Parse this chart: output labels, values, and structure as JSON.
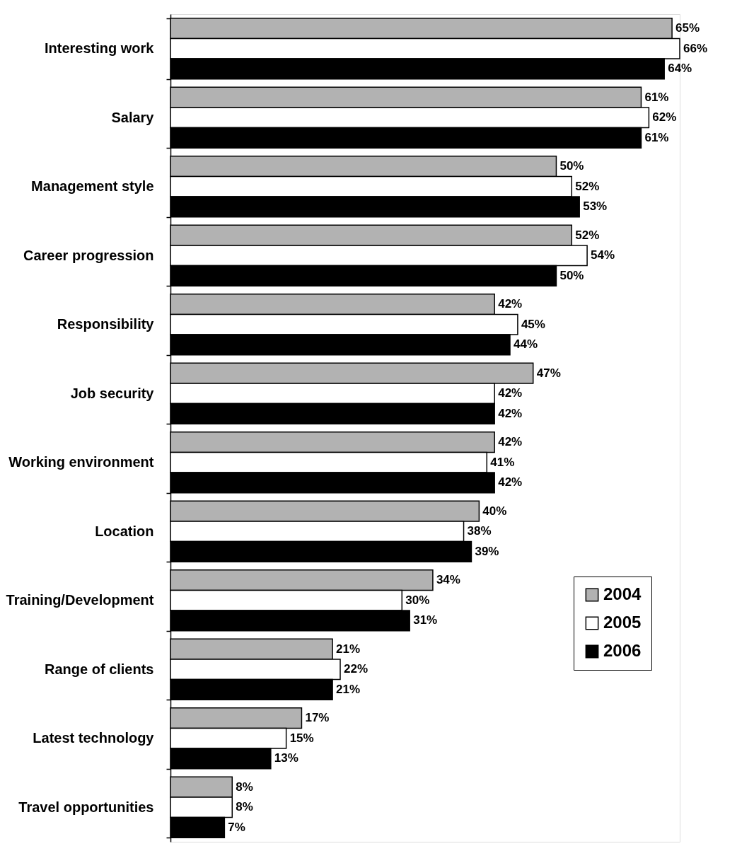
{
  "chart_data": {
    "type": "bar",
    "orientation": "horizontal",
    "categories": [
      "Interesting work",
      "Salary",
      "Management style",
      "Career progression",
      "Responsibility",
      "Job security",
      "Working environment",
      "Location",
      "Training/Development",
      "Range of clients",
      "Latest technology",
      "Travel opportunities"
    ],
    "series": [
      {
        "name": "2004",
        "color": "#b2b2b2",
        "values": [
          65,
          61,
          50,
          52,
          42,
          47,
          42,
          40,
          34,
          21,
          17,
          8
        ],
        "value_labels": [
          "65%",
          "61%",
          "50%",
          "52%",
          "42%",
          "47%",
          "42%",
          "40%",
          "34%",
          "21%",
          "17%",
          "8%"
        ]
      },
      {
        "name": "2005",
        "color": "#ffffff",
        "values": [
          66,
          62,
          52,
          54,
          45,
          42,
          41,
          38,
          30,
          22,
          15,
          8
        ],
        "value_labels": [
          "66%",
          "62%",
          "52%",
          "54%",
          "45%",
          "42%",
          "41%",
          "38%",
          "30%",
          "22%",
          "15%",
          "8%"
        ]
      },
      {
        "name": "2006",
        "color": "#000000",
        "values": [
          64,
          61,
          53,
          50,
          44,
          42,
          42,
          39,
          31,
          21,
          13,
          7
        ],
        "value_labels": [
          "64%",
          "61%",
          "53%",
          "50%",
          "44%",
          "42%",
          "42%",
          "39%",
          "31%",
          "21%",
          "13%",
          "7%"
        ]
      }
    ],
    "tick_labels": "y",
    "legend": "bottom right"
  }
}
